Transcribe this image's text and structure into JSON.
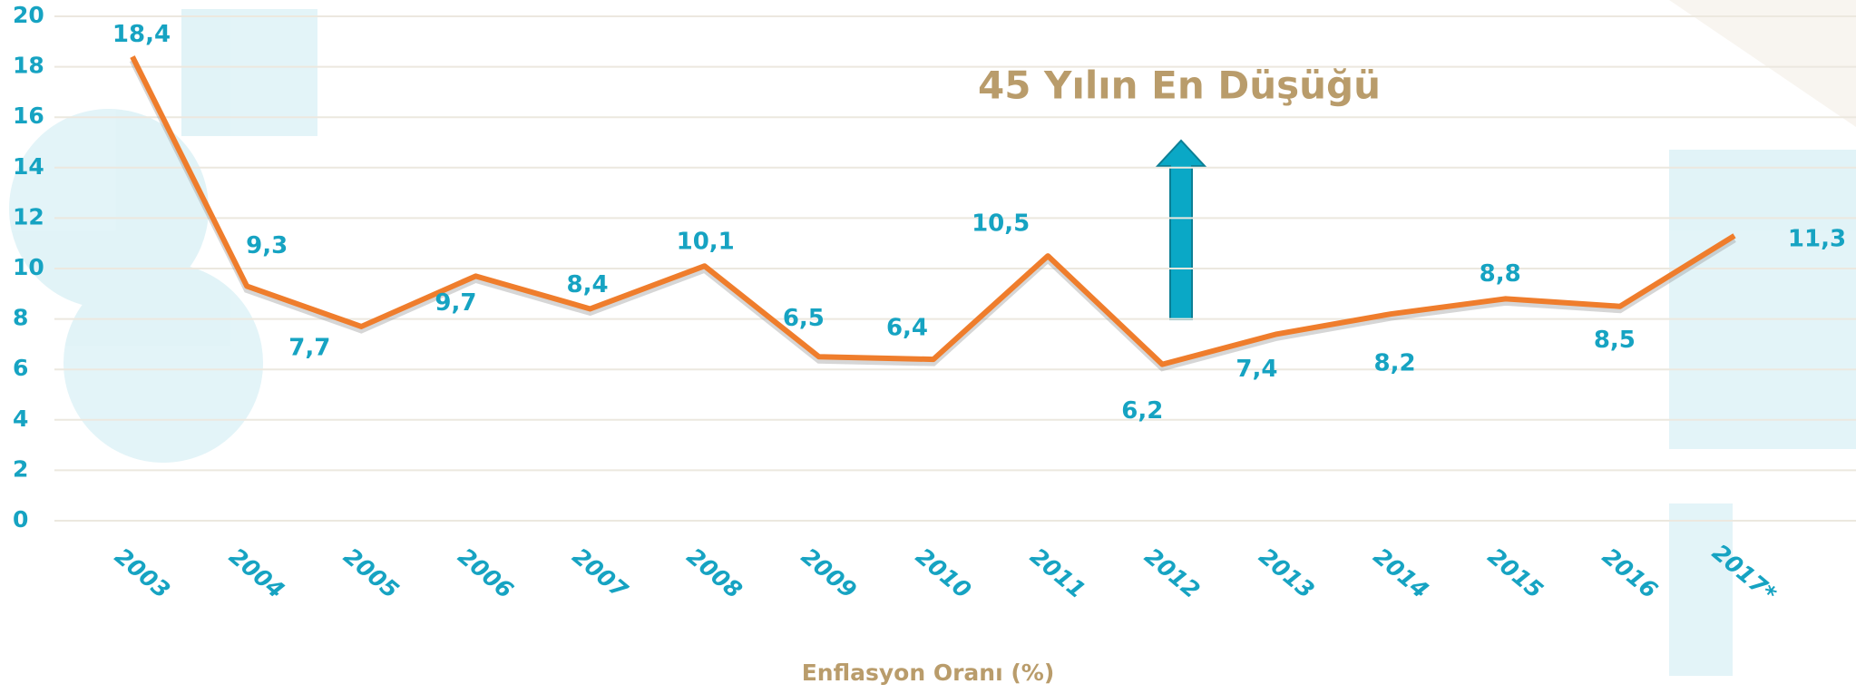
{
  "chart_data": {
    "type": "line",
    "annotation": "45 Yılın En Düşüğü",
    "x_label": "Enflasyon Oranı  (%)",
    "categories": [
      "2003",
      "2004",
      "2005",
      "2006",
      "2007",
      "2008",
      "2009",
      "2010",
      "2011",
      "2012",
      "2013",
      "2014",
      "2015",
      "2016",
      "2017*"
    ],
    "values": [
      18.4,
      9.3,
      7.7,
      9.7,
      8.4,
      10.1,
      6.5,
      6.4,
      10.5,
      6.2,
      7.4,
      8.2,
      8.8,
      8.5,
      11.3
    ],
    "value_labels": [
      "18,4",
      "9,3",
      "7,7",
      "9,7",
      "8,4",
      "10,1",
      "6,5",
      "6,4",
      "10,5",
      "6,2",
      "7,4",
      "8,2",
      "8,8",
      "8,5",
      "11,3"
    ],
    "color": "#ef7d2c",
    "ylim": [
      0,
      20
    ],
    "yticks": [
      0,
      2,
      4,
      6,
      8,
      10,
      12,
      14,
      16,
      18,
      20
    ],
    "grid": true
  }
}
